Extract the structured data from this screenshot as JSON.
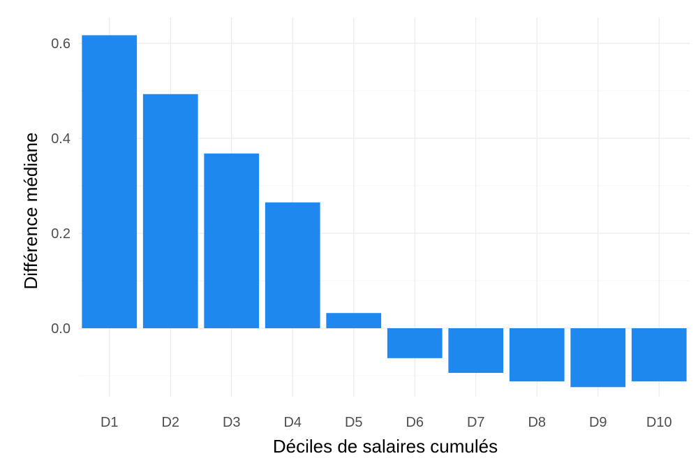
{
  "chart_data": {
    "type": "bar",
    "title": "",
    "xlabel": "Déciles de salaires cumulés",
    "ylabel": "Différence médiane",
    "categories": [
      "D1",
      "D2",
      "D3",
      "D4",
      "D5",
      "D6",
      "D7",
      "D8",
      "D9",
      "D10"
    ],
    "values": [
      0.617,
      0.493,
      0.368,
      0.265,
      0.032,
      -0.063,
      -0.094,
      -0.112,
      -0.124,
      -0.112
    ],
    "ylim": [
      -0.11,
      0.63
    ],
    "y_ticks": [
      "0.0",
      "0.2",
      "0.4",
      "0.6"
    ],
    "grid": true,
    "bar_color": "#1e88ef",
    "grid_major_color": "#ebebeb",
    "grid_minor_color": "#f5f5f5"
  }
}
